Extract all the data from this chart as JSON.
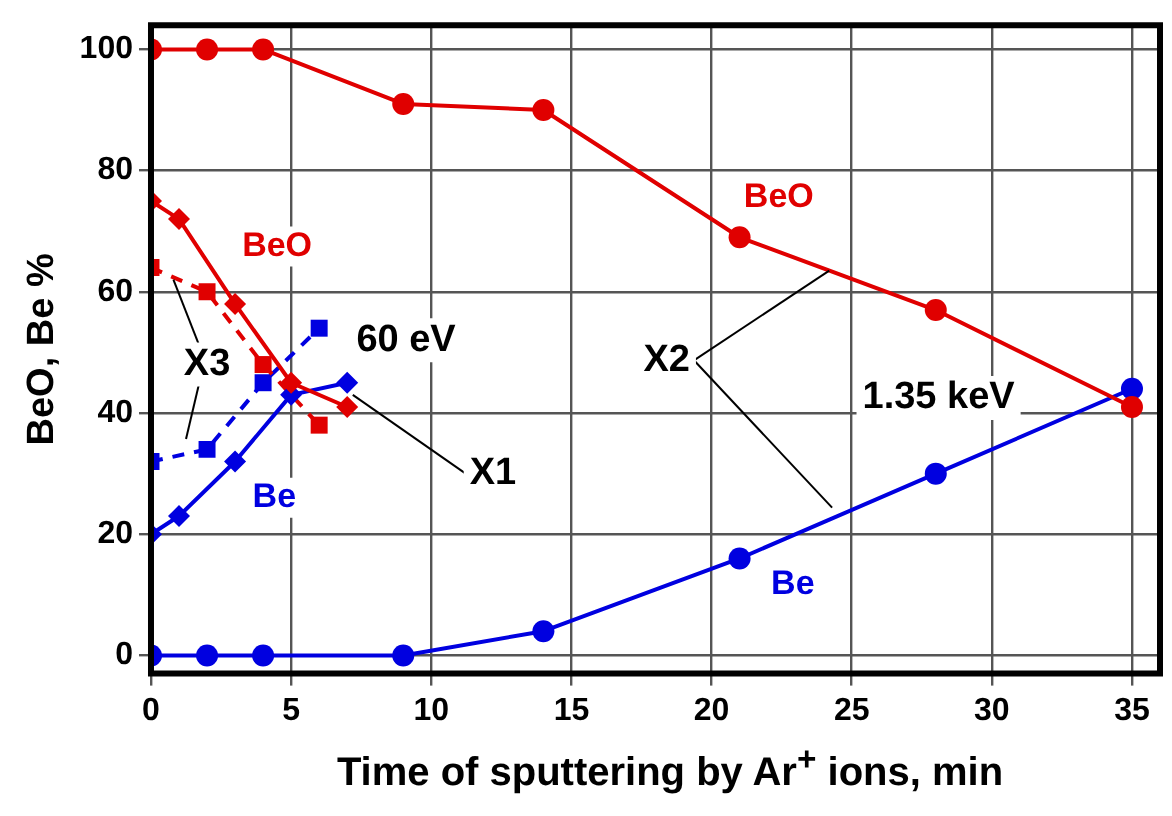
{
  "chart_data": {
    "type": "line",
    "xlabel": "Time of sputtering by Ar$^{+}$ ions, min",
    "ylabel": "BeO, Be %",
    "xlim": [
      0,
      36
    ],
    "ylim": [
      -3,
      104
    ],
    "xticks": [
      0,
      5,
      10,
      15,
      20,
      25,
      30,
      35
    ],
    "yticks": [
      0,
      20,
      40,
      60,
      80,
      100
    ],
    "grid": true,
    "legend": false,
    "series": [
      {
        "name": "BeO",
        "color": "#e00000",
        "marker": "circle",
        "line_style": "solid",
        "x": [
          0,
          2,
          4,
          9,
          14,
          21,
          28,
          35
        ],
        "values": [
          100,
          100,
          100,
          91,
          90,
          69,
          57,
          41
        ]
      },
      {
        "name": "Be",
        "color": "#0000e0",
        "marker": "circle",
        "line_style": "solid",
        "x": [
          0,
          2,
          4,
          9,
          14,
          21,
          28,
          35
        ],
        "values": [
          0,
          0,
          0,
          0,
          4,
          16,
          30,
          44
        ]
      },
      {
        "name": "BeO",
        "color": "#e00000",
        "marker": "diamond",
        "line_style": "solid",
        "x": [
          0,
          1,
          3,
          5,
          7
        ],
        "values": [
          75,
          72,
          58,
          45,
          41
        ]
      },
      {
        "name": "Be",
        "color": "#0000e0",
        "marker": "diamond",
        "line_style": "solid",
        "x": [
          0,
          1,
          3,
          5,
          7
        ],
        "values": [
          20,
          23,
          32,
          43,
          45
        ]
      },
      {
        "color": "#e00000",
        "marker": "square",
        "line_style": "dashed",
        "x": [
          0,
          2,
          4,
          6
        ],
        "values": [
          64,
          60,
          48,
          38
        ]
      },
      {
        "color": "#0000e0",
        "marker": "square",
        "line_style": "dashed",
        "x": [
          0,
          2,
          4,
          6
        ],
        "values": [
          32,
          34,
          45,
          54
        ]
      }
    ],
    "annotations": [
      "60 eV",
      "1.35 keV",
      {
        "text": "X1",
        "x": 7.2,
        "y": 43
      },
      {
        "text": "X2",
        "x": 24.2,
        "y": 63.5
      },
      {
        "text": "X3",
        "x": 0.8,
        "y": 62
      }
    ]
  }
}
